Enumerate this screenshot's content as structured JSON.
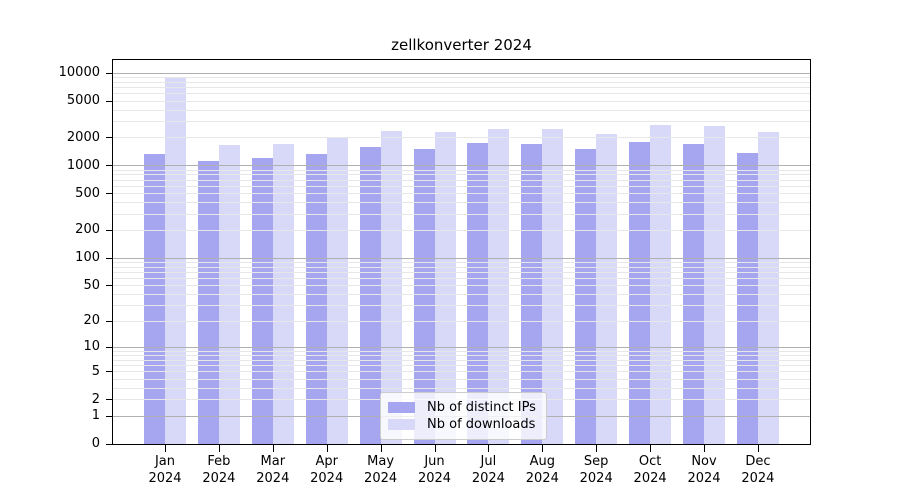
{
  "title": "zellkonverter 2024",
  "colors": {
    "background": "#ffffff",
    "axis_frame": "#000000",
    "grid_major": "#b0b0b0",
    "grid_minor": "#e7e7e7",
    "distinct_ips_bar": "#a5a5f0",
    "downloads_bar": "#d8d8f8",
    "legend_border": "#cccccc"
  },
  "legend": {
    "items": [
      {
        "label": "Nb of distinct IPs",
        "color": "#a5a5f0"
      },
      {
        "label": "Nb of downloads",
        "color": "#d8d8f8"
      }
    ],
    "position": "lower center"
  },
  "chart_data": {
    "type": "bar",
    "title": "zellkonverter 2024",
    "xlabel": "",
    "ylabel": "",
    "y_scale": "log10(value+1)",
    "ylim": [
      0,
      13500
    ],
    "grid": true,
    "legend_position": "lower center",
    "categories": [
      {
        "month": "Jan",
        "year": "2024"
      },
      {
        "month": "Feb",
        "year": "2024"
      },
      {
        "month": "Mar",
        "year": "2024"
      },
      {
        "month": "Apr",
        "year": "2024"
      },
      {
        "month": "May",
        "year": "2024"
      },
      {
        "month": "Jun",
        "year": "2024"
      },
      {
        "month": "Jul",
        "year": "2024"
      },
      {
        "month": "Aug",
        "year": "2024"
      },
      {
        "month": "Sep",
        "year": "2024"
      },
      {
        "month": "Oct",
        "year": "2024"
      },
      {
        "month": "Nov",
        "year": "2024"
      },
      {
        "month": "Dec",
        "year": "2024"
      }
    ],
    "series": [
      {
        "name": "Nb of distinct IPs",
        "color": "#a5a5f0",
        "values": [
          1330,
          1110,
          1190,
          1340,
          1560,
          1490,
          1740,
          1690,
          1510,
          1780,
          1710,
          1360
        ]
      },
      {
        "name": "Nb of downloads",
        "color": "#d8d8f8",
        "values": [
          8700,
          1670,
          1710,
          1950,
          2360,
          2320,
          2480,
          2440,
          2200,
          2700,
          2650,
          2320
        ]
      }
    ],
    "y_ticks": [
      {
        "value": 10000,
        "label": "10000"
      },
      {
        "value": 5000,
        "label": "5000"
      },
      {
        "value": 2000,
        "label": "2000"
      },
      {
        "value": 1000,
        "label": "1000"
      },
      {
        "value": 500,
        "label": "500"
      },
      {
        "value": 200,
        "label": "200"
      },
      {
        "value": 100,
        "label": "100"
      },
      {
        "value": 50,
        "label": "50"
      },
      {
        "value": 20,
        "label": "20"
      },
      {
        "value": 10,
        "label": "10"
      },
      {
        "value": 5,
        "label": "5"
      },
      {
        "value": 2,
        "label": "2"
      },
      {
        "value": 1,
        "label": "1"
      },
      {
        "value": 0,
        "label": "0"
      }
    ],
    "major_grid_values": [
      1,
      10,
      100,
      1000,
      10000
    ]
  }
}
